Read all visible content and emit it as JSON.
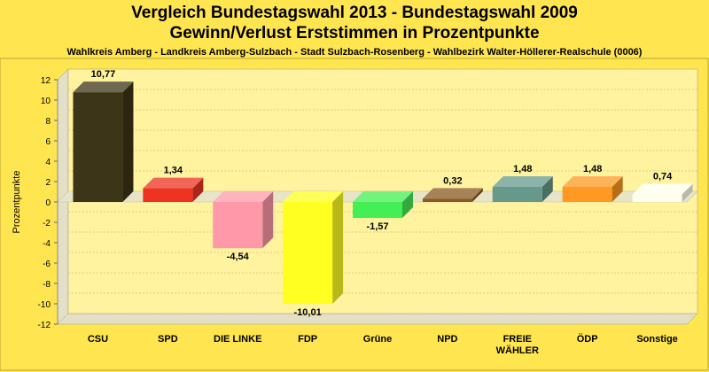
{
  "chart_data": {
    "type": "bar",
    "title": "Vergleich Bundestagswahl 2013 - Bundestagswahl 2009",
    "subtitle": "Gewinn/Verlust Erststimmen in Prozentpunkte",
    "caption": "Wahlkreis Amberg - Landkreis Amberg-Sulzbach - Stadt Sulzbach-Rosenberg - Wahlbezirk Walter-Höllerer-Realschule (0006)",
    "ylabel": "Prozentpunkte",
    "xlabel": "",
    "ylim": [
      -12,
      12
    ],
    "yticks": [
      12,
      10,
      8,
      6,
      4,
      2,
      0,
      -2,
      -4,
      -6,
      -8,
      -10,
      -12
    ],
    "grid": true,
    "categories": [
      "CSU",
      "SPD",
      "DIE LINKE",
      "FDP",
      "Grüne",
      "NPD",
      "FREIE WÄHLER",
      "ÖDP",
      "Sonstige"
    ],
    "category_lines": [
      [
        "CSU"
      ],
      [
        "SPD"
      ],
      [
        "DIE LINKE"
      ],
      [
        "FDP"
      ],
      [
        "Grüne"
      ],
      [
        "NPD"
      ],
      [
        "FREIE",
        "WÄHLER"
      ],
      [
        "ÖDP"
      ],
      [
        "Sonstige"
      ]
    ],
    "values": [
      10.77,
      1.34,
      -4.54,
      -10.01,
      -1.57,
      0.32,
      1.48,
      1.48,
      0.74
    ],
    "value_labels": [
      "10,77",
      "1,34",
      "-4,54",
      "-10,01",
      "-1,57",
      "0,32",
      "1,48",
      "1,48",
      "0,74"
    ],
    "colors": [
      "#3D3518",
      "#EE3322",
      "#FF99AA",
      "#FFFF22",
      "#44EE55",
      "#8A5A22",
      "#66998A",
      "#FF9922",
      "#FFFFEE"
    ]
  }
}
